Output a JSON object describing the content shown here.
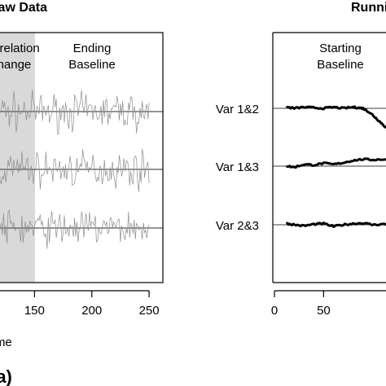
{
  "chart_data": [
    {
      "type": "line",
      "title": "Raw Data",
      "xlabel": "Time",
      "figure_label": "(a)",
      "xlim": [
        100,
        262
      ],
      "x_ticks": [
        150,
        200,
        250
      ],
      "tick_labels": [
        "150",
        "200",
        "250"
      ],
      "regions": [
        {
          "label": [
            "Correlation",
            "Change"
          ],
          "x_range": [
            100,
            150
          ],
          "shaded": true,
          "shade_color": "#d9d9d9"
        },
        {
          "label": [
            "Ending",
            "Baseline"
          ],
          "x_range": [
            150,
            250
          ],
          "shaded": false
        }
      ],
      "series": [
        {
          "baseline_y": 0,
          "color": "#8c8c8c"
        },
        {
          "baseline_y": 0,
          "color": "#8c8c8c"
        },
        {
          "baseline_y": 0,
          "color": "#8c8c8c"
        }
      ],
      "x_step": 1,
      "x_start": 100,
      "x_end": 250
    },
    {
      "type": "line",
      "title": "Running",
      "xlim": [
        -5,
        130
      ],
      "x_ticks": [
        0,
        50
      ],
      "tick_labels": [
        "0",
        "50"
      ],
      "regions": [
        {
          "label": [
            "Starting",
            "Baseline"
          ],
          "x_range": [
            0,
            100
          ],
          "shaded": false
        }
      ],
      "series": [
        {
          "name": "Var 1&2",
          "x": [
            13,
            20,
            30,
            40,
            50,
            60,
            70,
            80,
            85,
            90,
            95,
            100,
            105,
            110,
            115,
            120
          ],
          "y": [
            0.02,
            0.0,
            0.02,
            0.01,
            0.0,
            0.02,
            0.0,
            0.02,
            0.01,
            0.0,
            -0.05,
            -0.12,
            -0.2,
            -0.28,
            -0.36,
            -0.42
          ]
        },
        {
          "name": "Var 1&3",
          "x": [
            13,
            20,
            30,
            40,
            50,
            60,
            70,
            80,
            90,
            100,
            110,
            120
          ],
          "y": [
            0.0,
            -0.02,
            0.03,
            0.02,
            0.05,
            0.03,
            0.06,
            0.1,
            0.12,
            0.11,
            0.12,
            0.11
          ]
        },
        {
          "name": "Var 2&3",
          "x": [
            13,
            20,
            30,
            40,
            50,
            60,
            70,
            80,
            90,
            100,
            110,
            120
          ],
          "y": [
            0.02,
            0.0,
            -0.02,
            0.01,
            0.02,
            -0.03,
            0.0,
            0.02,
            0.03,
            0.0,
            0.01,
            0.0
          ]
        }
      ],
      "color": "#000000"
    }
  ]
}
